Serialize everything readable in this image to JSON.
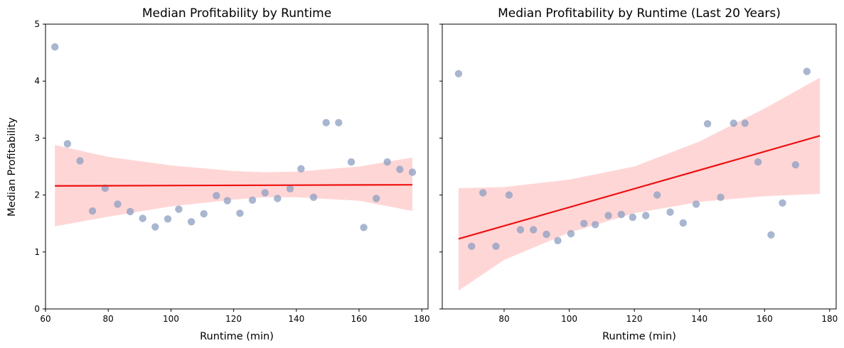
{
  "chart_data": [
    {
      "type": "scatter",
      "title": "Median Profitability by Runtime",
      "xlabel": "Runtime (min)",
      "ylabel": "Median Profitability",
      "xlim": [
        60,
        182
      ],
      "ylim": [
        0,
        5
      ],
      "xticks": [
        60,
        80,
        100,
        120,
        140,
        160,
        180
      ],
      "yticks": [
        0,
        1,
        2,
        3,
        4,
        5
      ],
      "show_yticklabels": true,
      "colors": {
        "points": "#8c9dc0",
        "line": "#ee1111",
        "band": "#ffd6d6"
      },
      "points": [
        {
          "x": 63,
          "y": 4.6
        },
        {
          "x": 67,
          "y": 2.9
        },
        {
          "x": 71,
          "y": 2.6
        },
        {
          "x": 75,
          "y": 1.72
        },
        {
          "x": 79,
          "y": 2.12
        },
        {
          "x": 83,
          "y": 1.84
        },
        {
          "x": 87,
          "y": 1.71
        },
        {
          "x": 91,
          "y": 1.59
        },
        {
          "x": 95,
          "y": 1.44
        },
        {
          "x": 99,
          "y": 1.58
        },
        {
          "x": 102.5,
          "y": 1.75
        },
        {
          "x": 106.5,
          "y": 1.53
        },
        {
          "x": 110.5,
          "y": 1.67
        },
        {
          "x": 114.5,
          "y": 1.99
        },
        {
          "x": 118,
          "y": 1.9
        },
        {
          "x": 122,
          "y": 1.68
        },
        {
          "x": 126,
          "y": 1.91
        },
        {
          "x": 130,
          "y": 2.04
        },
        {
          "x": 134,
          "y": 1.94
        },
        {
          "x": 138,
          "y": 2.11
        },
        {
          "x": 141.5,
          "y": 2.46
        },
        {
          "x": 145.5,
          "y": 1.96
        },
        {
          "x": 149.5,
          "y": 3.27
        },
        {
          "x": 153.5,
          "y": 3.27
        },
        {
          "x": 157.5,
          "y": 2.58
        },
        {
          "x": 161.5,
          "y": 1.43
        },
        {
          "x": 165.5,
          "y": 1.94
        },
        {
          "x": 169,
          "y": 2.58
        },
        {
          "x": 173,
          "y": 2.45
        },
        {
          "x": 177,
          "y": 2.4
        }
      ],
      "regression": {
        "x": [
          63,
          177
        ],
        "y": [
          2.16,
          2.18
        ]
      },
      "band": {
        "x": [
          63,
          80,
          100,
          120,
          130,
          140,
          160,
          177
        ],
        "upper": [
          2.88,
          2.67,
          2.52,
          2.42,
          2.4,
          2.41,
          2.5,
          2.66
        ],
        "lower": [
          1.45,
          1.62,
          1.8,
          1.92,
          1.96,
          1.96,
          1.9,
          1.72
        ]
      }
    },
    {
      "type": "scatter",
      "title": "Median Profitability by Runtime (Last 20 Years)",
      "xlabel": "Runtime (min)",
      "ylabel": "",
      "xlim": [
        61,
        182
      ],
      "ylim": [
        0,
        5
      ],
      "xticks": [
        80,
        100,
        120,
        140,
        160,
        180
      ],
      "yticks": [
        0,
        1,
        2,
        3,
        4,
        5
      ],
      "show_yticklabels": false,
      "colors": {
        "points": "#8c9dc0",
        "line": "#ee1111",
        "band": "#ffd6d6"
      },
      "points": [
        {
          "x": 66,
          "y": 4.13
        },
        {
          "x": 70,
          "y": 1.1
        },
        {
          "x": 73.5,
          "y": 2.04
        },
        {
          "x": 77.5,
          "y": 1.1
        },
        {
          "x": 81.5,
          "y": 2.0
        },
        {
          "x": 85,
          "y": 1.39
        },
        {
          "x": 89,
          "y": 1.39
        },
        {
          "x": 93,
          "y": 1.31
        },
        {
          "x": 96.5,
          "y": 1.2
        },
        {
          "x": 100.5,
          "y": 1.32
        },
        {
          "x": 104.5,
          "y": 1.5
        },
        {
          "x": 108,
          "y": 1.48
        },
        {
          "x": 112,
          "y": 1.64
        },
        {
          "x": 116,
          "y": 1.66
        },
        {
          "x": 119.5,
          "y": 1.61
        },
        {
          "x": 123.5,
          "y": 1.64
        },
        {
          "x": 127,
          "y": 2.0
        },
        {
          "x": 131,
          "y": 1.7
        },
        {
          "x": 135,
          "y": 1.51
        },
        {
          "x": 139,
          "y": 1.84
        },
        {
          "x": 142.5,
          "y": 3.25
        },
        {
          "x": 146.5,
          "y": 1.96
        },
        {
          "x": 150.5,
          "y": 3.26
        },
        {
          "x": 154,
          "y": 3.26
        },
        {
          "x": 158,
          "y": 2.58
        },
        {
          "x": 162,
          "y": 1.3
        },
        {
          "x": 165.5,
          "y": 1.86
        },
        {
          "x": 169.5,
          "y": 2.53
        },
        {
          "x": 173,
          "y": 4.17
        }
      ],
      "regression": {
        "x": [
          66,
          177
        ],
        "y": [
          1.23,
          3.04
        ]
      },
      "band": {
        "x": [
          66,
          80,
          100,
          120,
          140,
          160,
          177
        ],
        "upper": [
          2.12,
          2.14,
          2.27,
          2.5,
          2.94,
          3.52,
          4.06
        ],
        "lower": [
          0.32,
          0.86,
          1.34,
          1.68,
          1.88,
          1.98,
          2.02
        ]
      }
    }
  ]
}
